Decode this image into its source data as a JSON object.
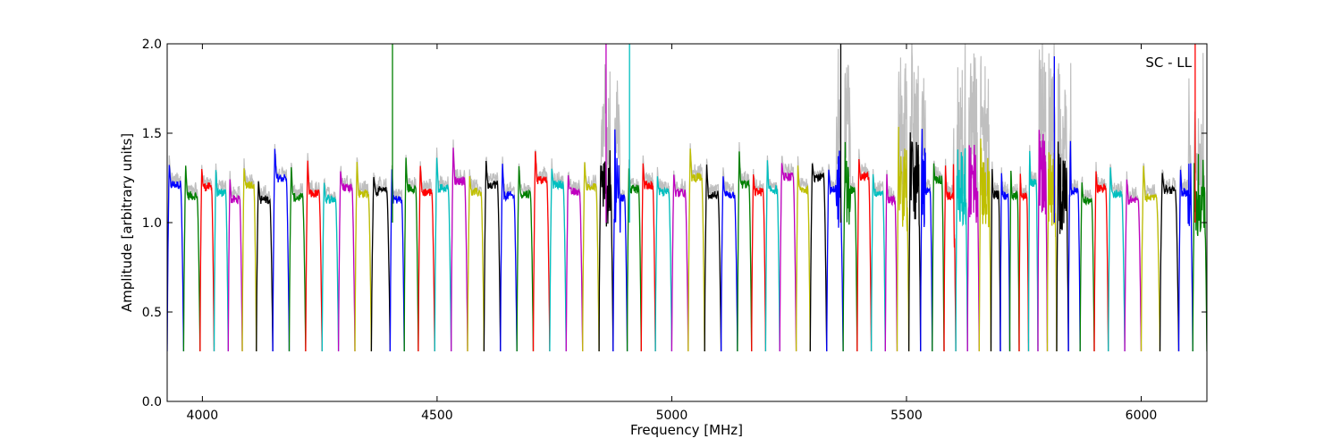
{
  "chart_data": {
    "type": "line",
    "title": "",
    "annotation": "SC - LL",
    "xlabel": "Frequency [MHz]",
    "ylabel": "Amplitude [arbitrary units]",
    "xlim": [
      3925,
      6140
    ],
    "ylim": [
      0.0,
      2.0
    ],
    "xticks": [
      4000,
      4500,
      5000,
      5500,
      6000
    ],
    "xtick_labels": [
      "4000",
      "4500",
      "5000",
      "5500",
      "6000"
    ],
    "yticks": [
      0.0,
      0.5,
      1.0,
      1.5,
      2.0
    ],
    "ytick_labels": [
      "0.0",
      "0.5",
      "1.0",
      "1.5",
      "2.0"
    ],
    "grid": false,
    "background_trace_color": "#bfbfbf",
    "series_colors": [
      "#0000ff",
      "#008000",
      "#ff0000",
      "#00bfbf",
      "#bf00bf",
      "#bfbf00",
      "#000000"
    ],
    "channels_summary": "Each color segment is one bandpass channel: amplitude rises from ~0.3 at the band edges to a ~1.1–1.4 plateau; segments cycle through blue, green, red, cyan, magenta, yellow, black.",
    "channel_edges_mhz": [
      3925,
      3960,
      3995,
      4025,
      4055,
      4085,
      4115,
      4150,
      4185,
      4220,
      4255,
      4290,
      4325,
      4360,
      4400,
      4430,
      4460,
      4495,
      4530,
      4565,
      4600,
      4635,
      4670,
      4705,
      4740,
      4775,
      4810,
      4845,
      4875,
      4905,
      4935,
      4965,
      5000,
      5035,
      5070,
      5105,
      5140,
      5170,
      5200,
      5230,
      5265,
      5295,
      5330,
      5365,
      5395,
      5425,
      5455,
      5480,
      5505,
      5530,
      5555,
      5580,
      5605,
      5630,
      5655,
      5680,
      5700,
      5720,
      5740,
      5760,
      5780,
      5800,
      5820,
      5845,
      5870,
      5900,
      5930,
      5965,
      6000,
      6040,
      6080,
      6110,
      6140
    ],
    "spikes": [
      {
        "x": 4405,
        "value": 2.0,
        "color": "#008000"
      },
      {
        "x": 4860,
        "value": 2.0,
        "color": "#bf00bf"
      },
      {
        "x": 4910,
        "value": 2.0,
        "color": "#00bfbf"
      },
      {
        "x": 5360,
        "value": 2.0,
        "color": "#000000"
      },
      {
        "x": 6115,
        "value": 2.0,
        "color": "#ff0000"
      },
      {
        "x": 5815,
        "value": 1.93,
        "color": "#0000ff"
      }
    ],
    "noisy_ranges_mhz": [
      [
        4850,
        4890
      ],
      [
        5350,
        5380
      ],
      [
        5480,
        5540
      ],
      [
        5600,
        5680
      ],
      [
        5780,
        5850
      ],
      [
        6100,
        6140
      ]
    ]
  }
}
